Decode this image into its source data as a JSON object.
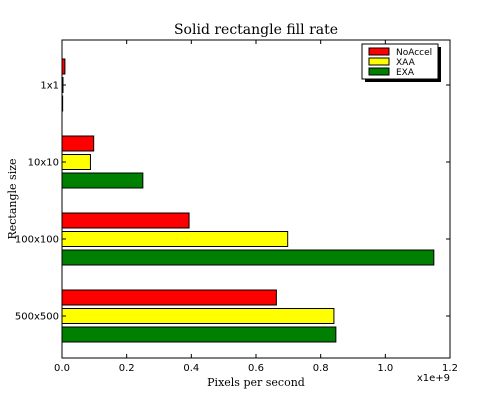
{
  "chart_data": {
    "type": "bar",
    "orientation": "horizontal",
    "title": "Solid rectangle fill rate",
    "xlabel": "Pixels per second",
    "ylabel": "Rectangle size",
    "x_scale_label": "x1e+9",
    "xlim": [
      0,
      1.2
    ],
    "xticks": [
      "0.0",
      "0.2",
      "0.4",
      "0.6",
      "0.8",
      "1.0",
      "1.2"
    ],
    "categories": [
      "1x1",
      "10x10",
      "100x100",
      "500x500"
    ],
    "series": [
      {
        "name": "NoAccel",
        "color": "#ff0000",
        "values": [
          0.009,
          0.098,
          0.393,
          0.663
        ]
      },
      {
        "name": "XAA",
        "color": "#ffff00",
        "values": [
          0.003,
          0.088,
          0.698,
          0.841
        ]
      },
      {
        "name": "EXA",
        "color": "#008000",
        "values": [
          0.002,
          0.25,
          1.15,
          0.847
        ]
      }
    ],
    "legend_position": "top-right",
    "grid": false
  }
}
